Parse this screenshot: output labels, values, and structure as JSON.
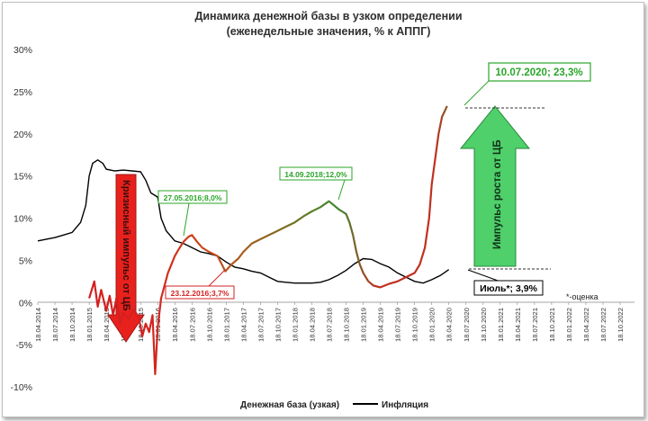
{
  "chart_data": {
    "type": "line",
    "title": "Динамика денежной базы в узком определении",
    "subtitle": "(еженедельные значения, % к АППГ)",
    "xlabel": "",
    "ylabel": "",
    "ylim": [
      -10,
      30
    ],
    "y_ticks": [
      -10,
      -5,
      0,
      5,
      10,
      15,
      20,
      25,
      30
    ],
    "y_tick_labels": [
      "-10%",
      "-5%",
      "0%",
      "5%",
      "10%",
      "15%",
      "20%",
      "25%",
      "30%"
    ],
    "x_tick_labels": [
      "18.04.2014",
      "18.07.2014",
      "18.10.2014",
      "18.01.2015",
      "18.04.2015",
      "18.07.2015",
      "18.10.2015",
      "18.01.2016",
      "18.04.2016",
      "18.07.2016",
      "18.10.2016",
      "18.01.2017",
      "18.04.2017",
      "18.07.2017",
      "18.10.2017",
      "18.01.2018",
      "18.04.2018",
      "18.07.2018",
      "18.10.2018",
      "18.01.2019",
      "18.04.2019",
      "18.07.2019",
      "18.10.2019",
      "18.01.2020",
      "18.04.2020",
      "18.07.2020",
      "18.10.2020",
      "18.01.2021",
      "18.04.2021",
      "18.07.2021",
      "18.10.2021",
      "18.01.2022",
      "18.04.2022",
      "18.07.2022",
      "18.10.2022"
    ],
    "grid": false,
    "legend_position": "bottom",
    "series": [
      {
        "name": "Денежная база (узкая)",
        "color": "#c0271c",
        "color_end": "#2ca02c",
        "values": [
          [
            3,
            0.5
          ],
          [
            3.3,
            2.5
          ],
          [
            3.5,
            -0.5
          ],
          [
            3.7,
            1.5
          ],
          [
            4,
            -1
          ],
          [
            4.2,
            0.8
          ],
          [
            4.4,
            -1.5
          ],
          [
            4.6,
            0.6
          ],
          [
            4.8,
            -2.5
          ],
          [
            5.0,
            -1.2
          ],
          [
            5.3,
            -2
          ],
          [
            5.6,
            -0.8
          ],
          [
            5.9,
            -1.8
          ],
          [
            6.1,
            -4
          ],
          [
            6.3,
            -2.5
          ],
          [
            6.5,
            -3.5
          ],
          [
            6.7,
            -1.5
          ],
          [
            6.85,
            -8.5
          ],
          [
            7.0,
            -3
          ],
          [
            7.2,
            0.5
          ],
          [
            7.4,
            2
          ],
          [
            7.6,
            3.5
          ],
          [
            7.8,
            4.5
          ],
          [
            8.0,
            5.5
          ],
          [
            8.2,
            6.2
          ],
          [
            8.5,
            7.2
          ],
          [
            8.8,
            7.8
          ],
          [
            9.0,
            8.0
          ],
          [
            9.3,
            7.2
          ],
          [
            9.6,
            6.5
          ],
          [
            10.0,
            6
          ],
          [
            10.5,
            5.5
          ],
          [
            10.95,
            3.7
          ],
          [
            11.3,
            4.5
          ],
          [
            11.7,
            5.2
          ],
          [
            12.0,
            6.0
          ],
          [
            12.5,
            7.0
          ],
          [
            13.0,
            7.5
          ],
          [
            13.5,
            8.0
          ],
          [
            14.0,
            8.5
          ],
          [
            14.5,
            9.0
          ],
          [
            15.0,
            9.5
          ],
          [
            15.5,
            10.2
          ],
          [
            16.0,
            10.8
          ],
          [
            16.5,
            11.3
          ],
          [
            17.0,
            12.0
          ],
          [
            17.3,
            11.5
          ],
          [
            17.6,
            11.0
          ],
          [
            18.0,
            10.5
          ],
          [
            18.2,
            9.5
          ],
          [
            18.4,
            8.0
          ],
          [
            18.6,
            6.0
          ],
          [
            18.8,
            4.5
          ],
          [
            19.0,
            3.5
          ],
          [
            19.3,
            2.5
          ],
          [
            19.6,
            2.0
          ],
          [
            20.0,
            1.8
          ],
          [
            20.5,
            2.2
          ],
          [
            21.0,
            2.5
          ],
          [
            21.5,
            3.0
          ],
          [
            22.0,
            3.5
          ],
          [
            22.3,
            4.5
          ],
          [
            22.6,
            6.5
          ],
          [
            22.85,
            10
          ],
          [
            23.0,
            14
          ],
          [
            23.2,
            17
          ],
          [
            23.4,
            20
          ],
          [
            23.6,
            22
          ],
          [
            23.9,
            23.3
          ]
        ]
      },
      {
        "name": "Инфляция",
        "color": "#000000",
        "values": [
          [
            0,
            7.3
          ],
          [
            0.5,
            7.5
          ],
          [
            1,
            7.7
          ],
          [
            1.5,
            8.0
          ],
          [
            2,
            8.3
          ],
          [
            2.5,
            9.5
          ],
          [
            2.8,
            11.5
          ],
          [
            3.0,
            15
          ],
          [
            3.2,
            16.5
          ],
          [
            3.5,
            16.9
          ],
          [
            3.8,
            16.5
          ],
          [
            4.0,
            15.8
          ],
          [
            4.5,
            15.6
          ],
          [
            5.0,
            15.7
          ],
          [
            5.5,
            15.6
          ],
          [
            6.0,
            15.5
          ],
          [
            6.3,
            14.5
          ],
          [
            6.6,
            13.0
          ],
          [
            7.0,
            12.5
          ],
          [
            7.2,
            10.0
          ],
          [
            7.5,
            8.5
          ],
          [
            8.0,
            7.3
          ],
          [
            8.5,
            7.0
          ],
          [
            9.0,
            6.5
          ],
          [
            9.5,
            6.0
          ],
          [
            10.0,
            5.8
          ],
          [
            10.5,
            5.5
          ],
          [
            11.0,
            4.8
          ],
          [
            11.5,
            4.2
          ],
          [
            12.0,
            4.0
          ],
          [
            12.5,
            3.7
          ],
          [
            13.0,
            3.5
          ],
          [
            13.5,
            3.0
          ],
          [
            14.0,
            2.5
          ],
          [
            14.5,
            2.4
          ],
          [
            15.0,
            2.3
          ],
          [
            15.5,
            2.3
          ],
          [
            16.0,
            2.3
          ],
          [
            16.5,
            2.4
          ],
          [
            17.0,
            2.7
          ],
          [
            17.5,
            3.2
          ],
          [
            18.0,
            3.8
          ],
          [
            18.5,
            4.6
          ],
          [
            19.0,
            5.2
          ],
          [
            19.5,
            5.1
          ],
          [
            20.0,
            4.6
          ],
          [
            20.5,
            4.2
          ],
          [
            21.0,
            3.5
          ],
          [
            21.5,
            3.0
          ],
          [
            22.0,
            2.5
          ],
          [
            22.5,
            2.3
          ],
          [
            23.0,
            2.7
          ],
          [
            23.5,
            3.2
          ],
          [
            24.0,
            3.9
          ]
        ]
      }
    ],
    "annotations": {
      "peak_green": "10.07.2020; 23,3%",
      "green_2016": "27.05.2016;8,0%",
      "green_2018": "14.09.2018;12,0%",
      "red_2016": "23.12.2016;3,7%",
      "inflation_july": "Июль*; 3,9%",
      "red_arrow": "Кризисный импульс от ЦБ",
      "green_arrow": "Импульс роста от ЦБ",
      "estimate_note": "*-оценка"
    }
  }
}
